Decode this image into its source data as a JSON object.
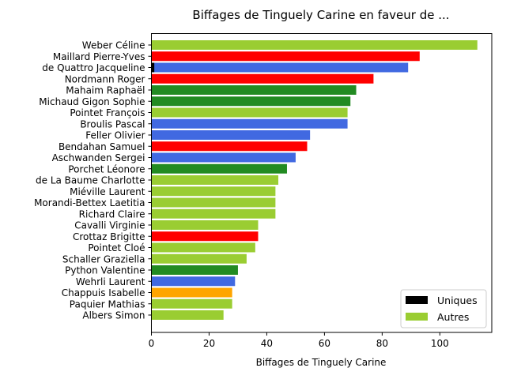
{
  "chart_data": {
    "type": "bar",
    "orientation": "horizontal",
    "title": "Biffages de Tinguely Carine en faveur de ...",
    "xlabel": "Biffages de Tinguely Carine",
    "ylabel": "",
    "xlim": [
      0,
      118
    ],
    "xticks": [
      0,
      20,
      40,
      60,
      80,
      100
    ],
    "grid": false,
    "legend_position": "bottom-right",
    "legend": [
      {
        "label": "Uniques",
        "color": "#000000"
      },
      {
        "label": "Autres",
        "color": "#9acd32"
      }
    ],
    "categories": [
      "Weber Céline",
      "Maillard Pierre-Yves",
      "de Quattro Jacqueline",
      "Nordmann Roger",
      "Mahaim Raphaël",
      "Michaud Gigon Sophie",
      "Pointet François",
      "Broulis Pascal",
      "Feller Olivier",
      "Bendahan Samuel",
      "Aschwanden Sergei",
      "Porchet Léonore",
      "de La Baume Charlotte",
      "Miéville Laurent",
      "Morandi-Bettex Laetitia",
      "Richard Claire",
      "Cavalli Virginie",
      "Crottaz Brigitte",
      "Pointet Cloé",
      "Schaller Graziella",
      "Python Valentine",
      "Wehrli Laurent",
      "Chappuis Isabelle",
      "Paquier Mathias",
      "Albers Simon"
    ],
    "series": [
      {
        "name": "Uniques",
        "values": [
          0,
          0,
          1,
          0,
          0,
          0,
          0,
          0,
          0,
          0,
          0,
          0,
          0,
          0,
          0,
          0,
          0,
          0,
          0,
          0,
          0,
          0,
          0,
          0,
          0
        ]
      },
      {
        "name": "Autres",
        "values": [
          113,
          93,
          89,
          77,
          71,
          69,
          68,
          68,
          55,
          54,
          50,
          47,
          44,
          43,
          43,
          43,
          37,
          37,
          36,
          33,
          30,
          29,
          28,
          28,
          25
        ]
      }
    ],
    "bar_colors": [
      "#9acd32",
      "#ff0000",
      "#4169e1",
      "#ff0000",
      "#228b22",
      "#228b22",
      "#9acd32",
      "#4169e1",
      "#4169e1",
      "#ff0000",
      "#4169e1",
      "#228b22",
      "#9acd32",
      "#9acd32",
      "#9acd32",
      "#9acd32",
      "#9acd32",
      "#ff0000",
      "#9acd32",
      "#9acd32",
      "#228b22",
      "#4169e1",
      "#ffa500",
      "#9acd32",
      "#9acd32"
    ]
  }
}
